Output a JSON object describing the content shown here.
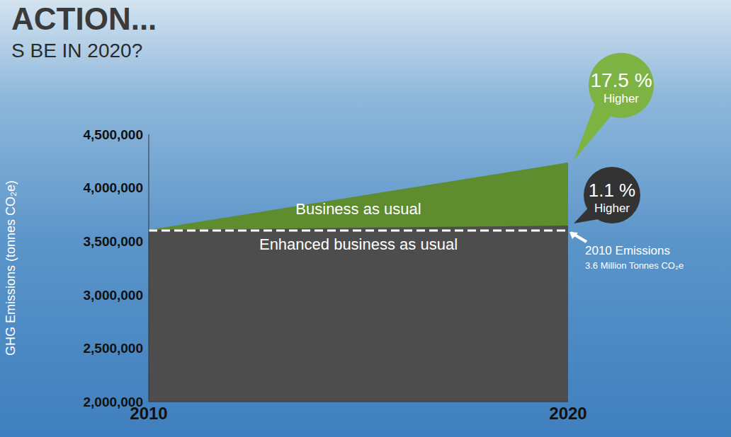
{
  "chart_data": {
    "type": "area",
    "title": "ACTION...",
    "subtitle": "S BE IN 2020?",
    "y_label": "GHG Emissions (tonnes CO₂e)",
    "x": [
      2010,
      2020
    ],
    "xlim": [
      2010,
      2020
    ],
    "xticks": [
      2010,
      2020
    ],
    "ylim": [
      2000000,
      4500000
    ],
    "yticks": [
      {
        "value": 2000000,
        "label": "2,000,000"
      },
      {
        "value": 2500000,
        "label": "2,500,000"
      },
      {
        "value": 3000000,
        "label": "3,000,000"
      },
      {
        "value": 3500000,
        "label": "3,500,000"
      },
      {
        "value": 4000000,
        "label": "4,000,000"
      },
      {
        "value": 4500000,
        "label": "4,500,000"
      }
    ],
    "series": [
      {
        "name": "Business as usual",
        "color": "#5e8c2f",
        "values": [
          3600000,
          4230000
        ]
      },
      {
        "name": "Enhanced business as usual",
        "color": "#4d4d4d",
        "values": [
          3600000,
          3640000
        ]
      }
    ],
    "reference_line": {
      "value": 3600000,
      "label": "2010 Emissions",
      "sublabel": "3.6 Million Tonnes CO₂e"
    },
    "annotations": [
      {
        "series": "Business as usual",
        "text": "17.5 %",
        "subtext": "Higher",
        "color": "#7cb342"
      },
      {
        "series": "Enhanced business as usual",
        "text": "1.1 %",
        "subtext": "Higher",
        "color": "#333333"
      }
    ],
    "grid": false
  }
}
